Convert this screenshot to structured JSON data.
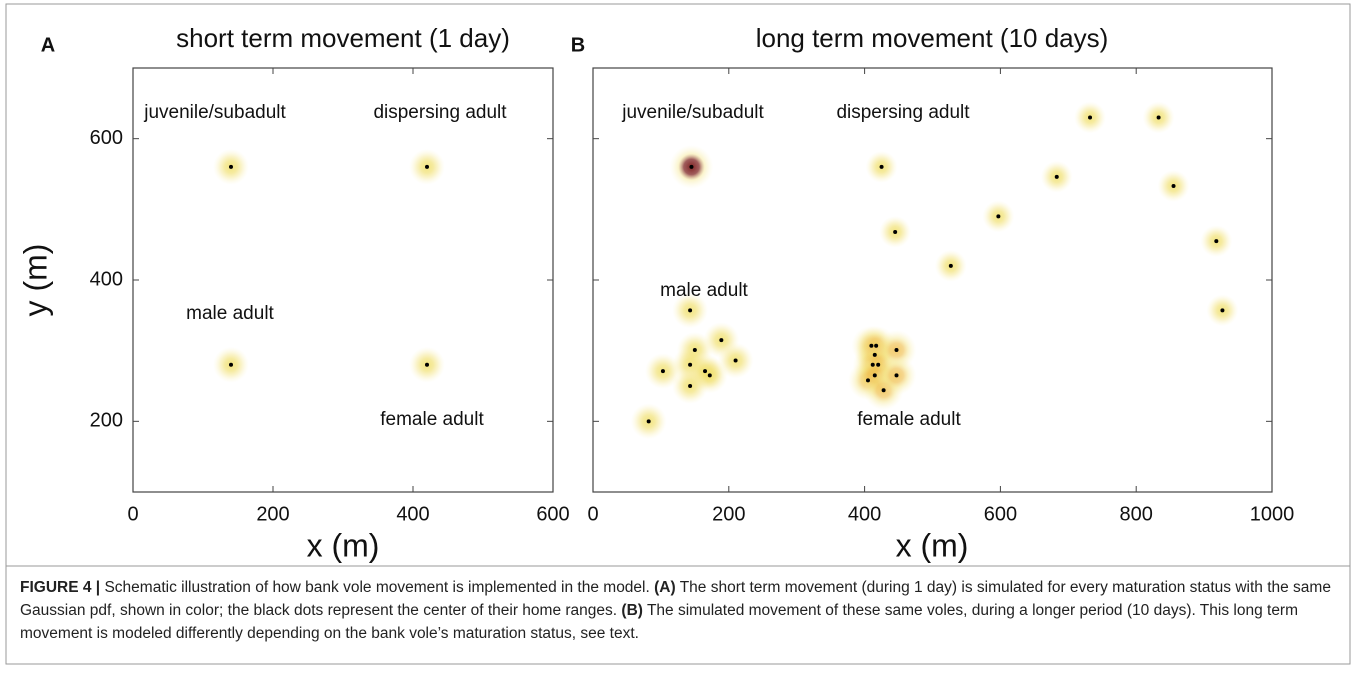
{
  "chart_data": [
    {
      "type": "scatter",
      "panel": "A",
      "title": "short term movement (1 day)",
      "xlabel": "x (m)",
      "ylabel": "y (m)",
      "xlim": [
        0,
        600
      ],
      "xticks": [
        0,
        200,
        400,
        600
      ],
      "ylim": [
        100,
        700
      ],
      "yticks": [
        200,
        400,
        600
      ],
      "ytick_labels": true,
      "series": [
        {
          "name": "juvenile/subadult",
          "color": "#f0df6a",
          "x": [
            140
          ],
          "y": [
            560
          ]
        },
        {
          "name": "dispersing adult",
          "color": "#f0df6a",
          "x": [
            420
          ],
          "y": [
            560
          ]
        },
        {
          "name": "male adult",
          "color": "#f0df6a",
          "x": [
            140
          ],
          "y": [
            280
          ]
        },
        {
          "name": "female adult",
          "color": "#f0df6a",
          "x": [
            420
          ],
          "y": [
            280
          ]
        }
      ]
    },
    {
      "type": "scatter",
      "panel": "B",
      "title": "long term movement (10 days)",
      "xlabel": "x (m)",
      "xlim": [
        0,
        1000
      ],
      "xticks": [
        0,
        200,
        400,
        600,
        800,
        1000
      ],
      "ylim": [
        100,
        700
      ],
      "yticks": [
        200,
        400,
        600
      ],
      "ytick_labels": false,
      "series": [
        {
          "name": "juvenile/subadult",
          "color": "#6a0000",
          "x": [
            145
          ],
          "y": [
            560
          ]
        },
        {
          "name": "dispersing adult",
          "color": "#f0df6a",
          "x": [
            425,
            445,
            527,
            597,
            683,
            732,
            833,
            855,
            918,
            927
          ],
          "y": [
            560,
            468,
            420,
            490,
            546,
            630,
            630,
            533,
            455,
            357
          ]
        },
        {
          "name": "male adult",
          "color": "#f0df6a",
          "x": [
            143,
            103,
            150,
            189,
            210,
            143,
            165,
            172,
            143,
            82
          ],
          "y": [
            357,
            271,
            301,
            315,
            286,
            280,
            271,
            265,
            250,
            200
          ]
        },
        {
          "name": "female adult",
          "color": "#f0c050",
          "x": [
            410,
            417,
            415,
            412,
            420,
            447,
            405,
            415,
            428,
            447
          ],
          "y": [
            307,
            307,
            294,
            280,
            280,
            301,
            258,
            265,
            244,
            265
          ]
        }
      ]
    }
  ],
  "caption": {
    "lead": "FIGURE 4 |",
    "text1": "Schematic illustration of how bank vole movement is implemented in the model.",
    "a": "(A)",
    "text2": "The short term movement (during 1 day) is simulated for every maturation status with the same Gaussian pdf, shown in color; the black dots represent the center of their home ranges.",
    "b": "(B)",
    "text3": "The simulated movement of these same voles, during a longer period (10 days). This long term movement is modeled differently depending on the bank vole’s maturation status, see text."
  }
}
